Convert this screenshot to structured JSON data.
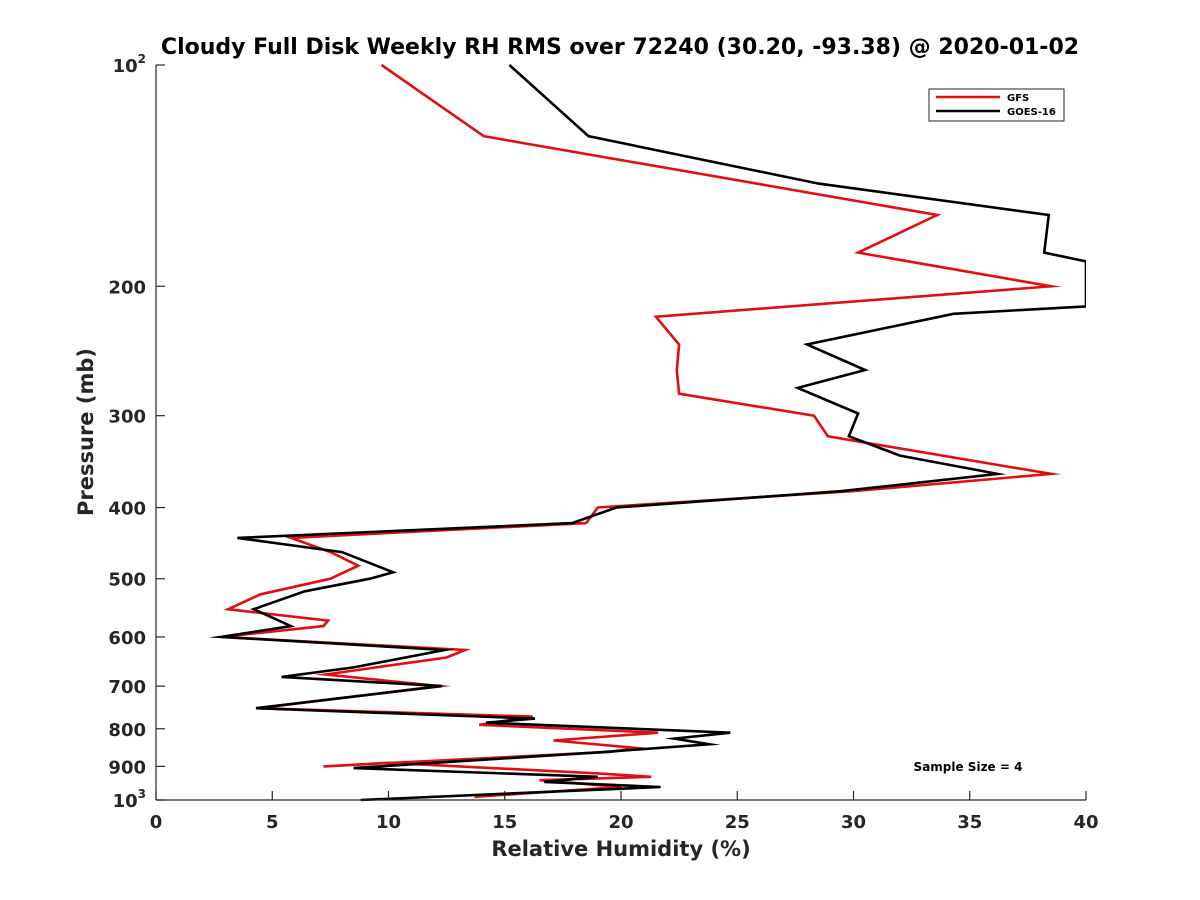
{
  "chart_data": {
    "type": "line",
    "title": "Cloudy Full Disk Weekly RH RMS over 72240 (30.20, -93.38) @ 2020-01-02",
    "xlabel": "Relative Humidity (%)",
    "ylabel": "Pressure (mb)",
    "xlim": [
      0,
      40
    ],
    "ylim": [
      100,
      1000
    ],
    "y_scale": "log",
    "y_reversed": true,
    "x_ticks": [
      0,
      5,
      10,
      15,
      20,
      25,
      30,
      35,
      40
    ],
    "x_tick_labels": [
      "0",
      "5",
      "10",
      "15",
      "20",
      "25",
      "30",
      "35",
      "40"
    ],
    "y_ticks": [
      100,
      200,
      300,
      400,
      500,
      600,
      700,
      800,
      900,
      1000
    ],
    "y_tick_labels": [
      {
        "base": "10",
        "exp": "2"
      },
      {
        "base": "200"
      },
      {
        "base": "300"
      },
      {
        "base": "400"
      },
      {
        "base": "500"
      },
      {
        "base": "600"
      },
      {
        "base": "700"
      },
      {
        "base": "800"
      },
      {
        "base": "900"
      },
      {
        "base": "10",
        "exp": "3"
      }
    ],
    "grid": false,
    "legend_position": "top-right",
    "annotation": "Sample Size = 4",
    "series": [
      {
        "name": "GFS",
        "color": "#e01010",
        "points": [
          [
            9.7,
            100
          ],
          [
            14.1,
            125
          ],
          [
            33.6,
            160
          ],
          [
            30.2,
            180
          ],
          [
            38.5,
            200
          ],
          [
            21.5,
            220
          ],
          [
            22.5,
            240
          ],
          [
            22.4,
            260
          ],
          [
            22.5,
            280
          ],
          [
            28.3,
            300
          ],
          [
            28.9,
            320
          ],
          [
            38.5,
            360
          ],
          [
            30.0,
            380
          ],
          [
            19.0,
            400
          ],
          [
            18.5,
            420
          ],
          [
            5.8,
            440
          ],
          [
            7.5,
            460
          ],
          [
            8.7,
            480
          ],
          [
            7.5,
            500
          ],
          [
            4.5,
            525
          ],
          [
            3.1,
            550
          ],
          [
            7.4,
            570
          ],
          [
            7.2,
            580
          ],
          [
            2.8,
            600
          ],
          [
            13.3,
            625
          ],
          [
            12.5,
            640
          ],
          [
            7.3,
            675
          ],
          [
            12.2,
            700
          ],
          [
            4.4,
            750
          ],
          [
            16.2,
            770
          ],
          [
            13.9,
            790
          ],
          [
            21.6,
            810
          ],
          [
            17.1,
            830
          ],
          [
            20.7,
            850
          ],
          [
            19.5,
            860
          ],
          [
            7.2,
            900
          ],
          [
            10.0,
            890
          ],
          [
            19.0,
            920
          ],
          [
            21.3,
            930
          ],
          [
            16.5,
            940
          ],
          [
            20.0,
            960
          ],
          [
            13.7,
            990
          ]
        ]
      },
      {
        "name": "GOES-16",
        "color": "#000000",
        "points": [
          [
            15.2,
            100
          ],
          [
            18.6,
            125
          ],
          [
            28.5,
            145
          ],
          [
            38.4,
            160
          ],
          [
            38.2,
            180
          ],
          [
            40.0,
            185
          ],
          [
            40.0,
            213
          ],
          [
            34.3,
            218
          ],
          [
            28.0,
            240
          ],
          [
            30.5,
            260
          ],
          [
            27.6,
            275
          ],
          [
            30.2,
            298
          ],
          [
            29.8,
            320
          ],
          [
            32.0,
            340
          ],
          [
            36.2,
            360
          ],
          [
            29.5,
            380
          ],
          [
            19.8,
            400
          ],
          [
            17.9,
            420
          ],
          [
            3.5,
            440
          ],
          [
            8.0,
            460
          ],
          [
            10.2,
            490
          ],
          [
            9.2,
            500
          ],
          [
            6.4,
            520
          ],
          [
            4.2,
            550
          ],
          [
            5.8,
            580
          ],
          [
            2.8,
            600
          ],
          [
            12.4,
            625
          ],
          [
            8.5,
            660
          ],
          [
            5.4,
            680
          ],
          [
            12.3,
            700
          ],
          [
            4.3,
            750
          ],
          [
            16.3,
            775
          ],
          [
            14.2,
            785
          ],
          [
            24.7,
            810
          ],
          [
            22.3,
            825
          ],
          [
            23.8,
            840
          ],
          [
            19.3,
            860
          ],
          [
            8.5,
            905
          ],
          [
            19.0,
            930
          ],
          [
            16.7,
            945
          ],
          [
            21.7,
            960
          ],
          [
            8.8,
            1000
          ]
        ]
      }
    ]
  }
}
